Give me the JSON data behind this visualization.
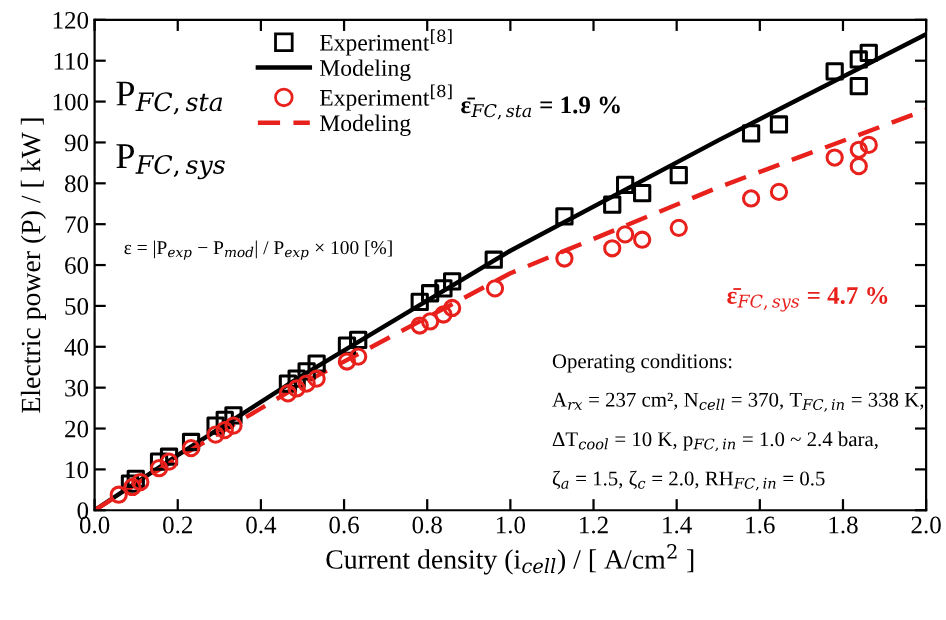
{
  "chart_data": {
    "type": "scatter",
    "xlabel": "Current density (i$_{cell}$) / [ A/cm$^{2}$ ]",
    "ylabel": "Electric power (P) / [ kW ]",
    "xlim": [
      0,
      2
    ],
    "ylim": [
      0,
      120
    ],
    "xticks": [
      {
        "value": 0,
        "label": "0.0"
      },
      {
        "value": 0.2,
        "label": "0.2"
      },
      {
        "value": 0.4,
        "label": "0.4"
      },
      {
        "value": 0.6,
        "label": "0.6"
      },
      {
        "value": 0.8,
        "label": "0.8"
      },
      {
        "value": 1.0,
        "label": "1.0"
      },
      {
        "value": 1.2,
        "label": "1.2"
      },
      {
        "value": 1.4,
        "label": "1.4"
      },
      {
        "value": 1.6,
        "label": "1.6"
      },
      {
        "value": 1.8,
        "label": "1.8"
      },
      {
        "value": 2.0,
        "label": "2.0"
      }
    ],
    "yticks": [
      0,
      10,
      20,
      30,
      40,
      50,
      60,
      70,
      80,
      90,
      100,
      110,
      120
    ],
    "grid": false,
    "legend": "top left",
    "series": [
      {
        "name": "Experiment$^{[8]}$",
        "marker": "square",
        "color": "#000000",
        "x": [
          0.085,
          0.099,
          0.155,
          0.179,
          0.232,
          0.291,
          0.313,
          0.334,
          0.465,
          0.486,
          0.51,
          0.534,
          0.607,
          0.634,
          0.782,
          0.807,
          0.839,
          0.86,
          0.96,
          1.13,
          1.245,
          1.276,
          1.317,
          1.405,
          1.579,
          1.646,
          1.78,
          1.838,
          1.838,
          1.862
        ],
        "values": [
          6.5,
          7.7,
          11.9,
          13.1,
          16.7,
          20.7,
          22.1,
          23.2,
          31.0,
          32.2,
          34.0,
          35.9,
          40.3,
          41.7,
          51.0,
          53.1,
          54.3,
          56.0,
          61.3,
          71.9,
          74.8,
          79.6,
          77.6,
          82.0,
          92.2,
          94.4,
          107.4,
          110.3,
          103.8,
          111.9
        ]
      },
      {
        "name": "Modeling",
        "type": "line",
        "line_style": "solid",
        "color": "#000000",
        "x": [
          0,
          0.2,
          0.5,
          1.0,
          1.5,
          2.0
        ],
        "values": [
          0,
          13.5,
          33,
          63.5,
          90.5,
          116.5
        ]
      },
      {
        "name": "Experiment$^{[8]}$",
        "marker": "circle",
        "color": "#e8211c",
        "x": [
          0.058,
          0.091,
          0.11,
          0.155,
          0.179,
          0.232,
          0.291,
          0.313,
          0.334,
          0.465,
          0.486,
          0.51,
          0.534,
          0.607,
          0.634,
          0.782,
          0.807,
          0.839,
          0.86,
          0.963,
          1.13,
          1.245,
          1.276,
          1.317,
          1.405,
          1.579,
          1.646,
          1.78,
          1.838,
          1.838,
          1.862
        ],
        "values": [
          3.8,
          5.7,
          6.9,
          10.3,
          11.9,
          15.2,
          18.5,
          19.6,
          20.7,
          28.6,
          29.8,
          31.0,
          32.2,
          36.4,
          37.6,
          45.2,
          46.2,
          47.9,
          49.5,
          54.3,
          61.6,
          64.1,
          67.5,
          66.2,
          69.1,
          76.3,
          77.9,
          86.3,
          88.2,
          84.2,
          89.4
        ]
      },
      {
        "name": "Modeling",
        "type": "line",
        "line_style": "dashed",
        "color": "#e8211c",
        "x": [
          0,
          0.2,
          0.5,
          1.0,
          1.5,
          2.0
        ],
        "values": [
          0,
          12.8,
          31,
          58,
          79,
          98
        ]
      }
    ],
    "annotations": [
      "P$_{FC,sta}$",
      "P$_{FC,sys}$",
      "ε = |P$_{exp}$ − P$_{mod}$| / P$_{exp}$ × 100 [%]",
      "ε̄$_{FC,sta}$ = 1.9 %",
      "ε̄$_{FC,sys}$ = 4.7 %",
      "Operating conditions:",
      "A$_{rx}$ = 237 cm², N$_{cell}$ = 370, T$_{FC,in}$ = 338 K,",
      "ΔT$_{cool}$ = 10 K, p$_{FC,in}$ = 1.0 ~ 2.4 bara,",
      "ζ$_{a}$ = 1.5, ζ$_{c}$ = 2.0, RH$_{FC,in}$ = 0.5"
    ]
  }
}
